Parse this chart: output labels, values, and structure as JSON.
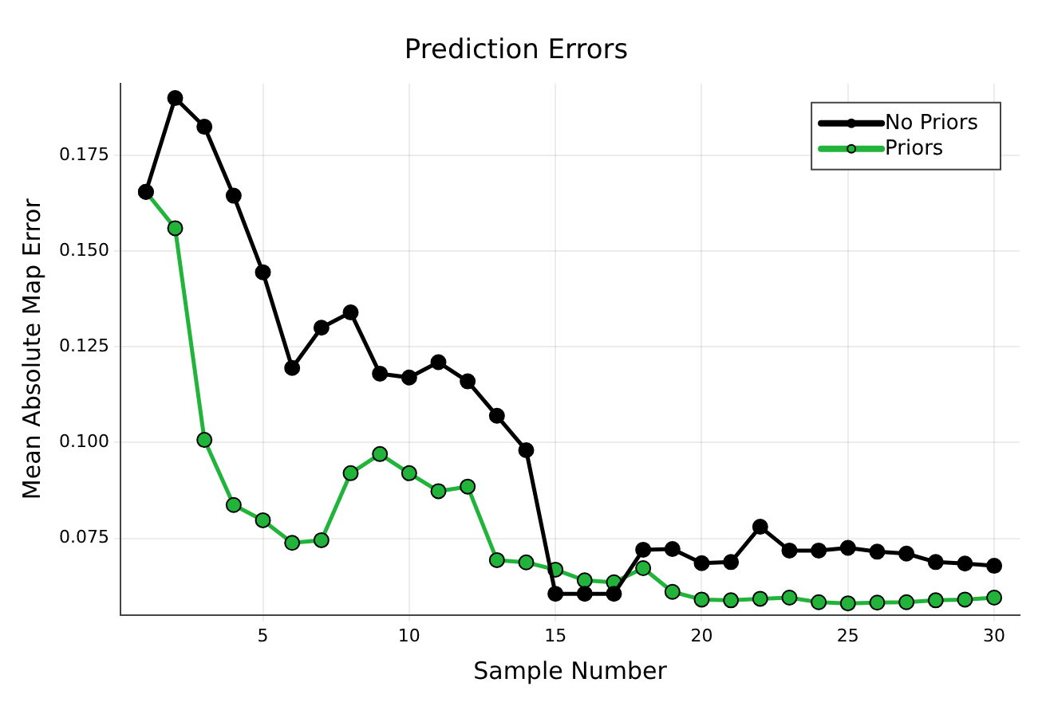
{
  "chart_data": {
    "type": "line",
    "title": "Prediction Errors",
    "xlabel": "Sample Number",
    "ylabel": "Mean Absolute Map Error",
    "x": [
      1,
      2,
      3,
      4,
      5,
      6,
      7,
      8,
      9,
      10,
      11,
      12,
      13,
      14,
      15,
      16,
      17,
      18,
      19,
      20,
      21,
      22,
      23,
      24,
      25,
      26,
      27,
      28,
      29,
      30
    ],
    "series": [
      {
        "name": "No Priors",
        "color": "#000000",
        "values": [
          0.1655,
          0.19,
          0.1825,
          0.1645,
          0.1445,
          0.1195,
          0.13,
          0.134,
          0.118,
          0.117,
          0.121,
          0.116,
          0.107,
          0.098,
          0.0605,
          0.0605,
          0.0605,
          0.072,
          0.0722,
          0.0685,
          0.0688,
          0.078,
          0.0718,
          0.0718,
          0.0725,
          0.0715,
          0.071,
          0.0688,
          0.0684,
          0.0678
        ]
      },
      {
        "name": "Priors",
        "color": "#22b33a",
        "values": [
          0.1655,
          0.156,
          0.1007,
          0.0837,
          0.0797,
          0.0738,
          0.0745,
          0.092,
          0.097,
          0.092,
          0.0873,
          0.0885,
          0.0693,
          0.0687,
          0.0668,
          0.064,
          0.0635,
          0.0672,
          0.061,
          0.059,
          0.0588,
          0.0592,
          0.0595,
          0.0583,
          0.058,
          0.0582,
          0.0583,
          0.0588,
          0.059,
          0.0595
        ]
      }
    ],
    "xlim": [
      0.13,
      30.87
    ],
    "xticks": [
      5,
      10,
      15,
      20,
      25,
      30
    ],
    "ylim": [
      0.055,
      0.1938
    ],
    "yticks": [
      0.075,
      {
        "value": 0.1,
        "label": "0.100"
      },
      0.125,
      {
        "value": 0.15,
        "label": "0.150"
      },
      0.175
    ],
    "grid": true,
    "legend": "top right",
    "marker": "circle",
    "line_style": "solid"
  }
}
